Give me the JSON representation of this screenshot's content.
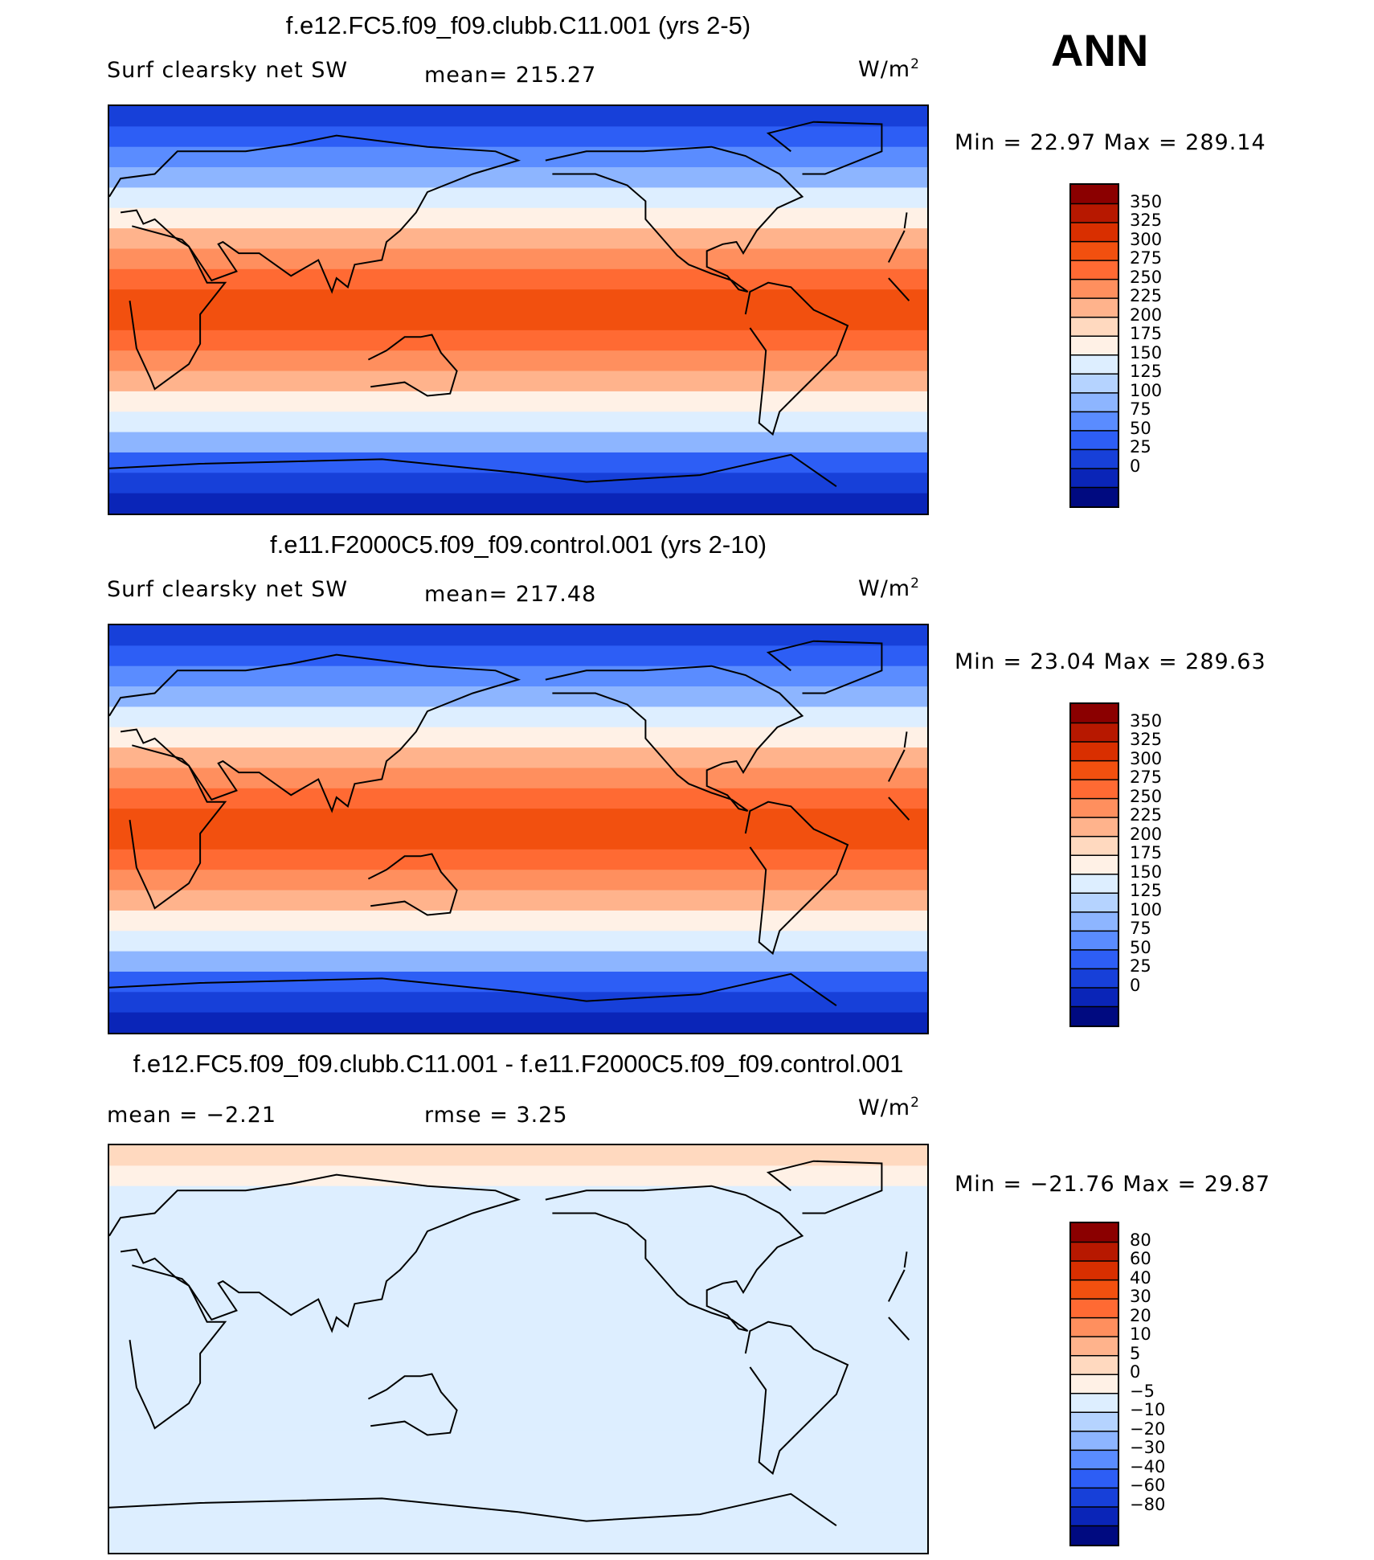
{
  "season": "ANN",
  "chart_data": [
    {
      "type": "heatmap",
      "title": "f.e12.FC5.f09_f09.clubb.C11.001 (yrs 2-5)",
      "variable": "Surf clearsky net SW",
      "mean_label": "mean= 215.27",
      "units": "W/m",
      "units_exp": "2",
      "stats_label": "Min =   22.97 Max =  289.14",
      "min": 22.97,
      "max": 289.14,
      "mean": 215.27,
      "colorbar_levels": [
        "350",
        "325",
        "300",
        "275",
        "250",
        "225",
        "200",
        "175",
        "150",
        "125",
        "100",
        "75",
        "50",
        "25",
        "0"
      ],
      "colorbar_colors": [
        "#8B0000",
        "#B71800",
        "#D92F00",
        "#F2500F",
        "#FF6A33",
        "#FF8F5E",
        "#FFB38C",
        "#FFD9BF",
        "#FFF1E6",
        "#DDEEFF",
        "#B5D3FF",
        "#8DB5FF",
        "#5A8CFF",
        "#2D5EF5",
        "#1740D9",
        "#0A25B8",
        "#000A80"
      ],
      "colormap": "ocean_values",
      "latitude_band_colors_north_to_south": [
        "#1740D9",
        "#2D5EF5",
        "#5A8CFF",
        "#8DB5FF",
        "#DDEEFF",
        "#FFF1E6",
        "#FFB38C",
        "#FF8F5E",
        "#FF6A33",
        "#F2500F",
        "#F2500F",
        "#FF6A33",
        "#FF8F5E",
        "#FFB38C",
        "#FFF1E6",
        "#DDEEFF",
        "#8DB5FF",
        "#2D5EF5",
        "#1740D9",
        "#0A25B8"
      ]
    },
    {
      "type": "heatmap",
      "title": "f.e11.F2000C5.f09_f09.control.001 (yrs 2-10)",
      "variable": "Surf clearsky net SW",
      "mean_label": "mean= 217.48",
      "units": "W/m",
      "units_exp": "2",
      "stats_label": "Min =   23.04 Max =  289.63",
      "min": 23.04,
      "max": 289.63,
      "mean": 217.48,
      "colorbar_levels": [
        "350",
        "325",
        "300",
        "275",
        "250",
        "225",
        "200",
        "175",
        "150",
        "125",
        "100",
        "75",
        "50",
        "25",
        "0"
      ],
      "colorbar_colors": [
        "#8B0000",
        "#B71800",
        "#D92F00",
        "#F2500F",
        "#FF6A33",
        "#FF8F5E",
        "#FFB38C",
        "#FFD9BF",
        "#FFF1E6",
        "#DDEEFF",
        "#B5D3FF",
        "#8DB5FF",
        "#5A8CFF",
        "#2D5EF5",
        "#1740D9",
        "#0A25B8",
        "#000A80"
      ],
      "colormap": "ocean_values",
      "latitude_band_colors_north_to_south": [
        "#1740D9",
        "#2D5EF5",
        "#5A8CFF",
        "#8DB5FF",
        "#DDEEFF",
        "#FFF1E6",
        "#FFB38C",
        "#FF8F5E",
        "#FF6A33",
        "#F2500F",
        "#F2500F",
        "#FF6A33",
        "#FF8F5E",
        "#FFB38C",
        "#FFF1E6",
        "#DDEEFF",
        "#8DB5FF",
        "#2D5EF5",
        "#1740D9",
        "#0A25B8"
      ]
    },
    {
      "type": "heatmap",
      "title": "f.e12.FC5.f09_f09.clubb.C11.001 - f.e11.F2000C5.f09_f09.control.001",
      "mean_label": "mean =   −2.21",
      "rmse_label": "rmse =    3.25",
      "units": "W/m",
      "units_exp": "2",
      "stats_label": "Min = −21.76 Max =   29.87",
      "min": -21.76,
      "max": 29.87,
      "mean": -2.21,
      "rmse": 3.25,
      "colorbar_levels": [
        "80",
        "60",
        "40",
        "30",
        "20",
        "10",
        "5",
        "0",
        "−5",
        "−10",
        "−20",
        "−30",
        "−40",
        "−60",
        "−80"
      ],
      "colorbar_colors": [
        "#8B0000",
        "#B71800",
        "#D92F00",
        "#F2500F",
        "#FF6A33",
        "#FF8F5E",
        "#FFB38C",
        "#FFD9BF",
        "#FFF1E6",
        "#DDEEFF",
        "#B5D3FF",
        "#8DB5FF",
        "#5A8CFF",
        "#2D5EF5",
        "#1740D9",
        "#0A25B8",
        "#000A80"
      ],
      "colormap": "difference",
      "latitude_band_colors_north_to_south": [
        "#FFD9BF",
        "#FFF1E6",
        "#DDEEFF",
        "#DDEEFF",
        "#DDEEFF",
        "#DDEEFF",
        "#DDEEFF",
        "#DDEEFF",
        "#DDEEFF",
        "#DDEEFF",
        "#DDEEFF",
        "#DDEEFF",
        "#DDEEFF",
        "#DDEEFF",
        "#DDEEFF",
        "#DDEEFF",
        "#DDEEFF",
        "#DDEEFF",
        "#DDEEFF",
        "#DDEEFF"
      ]
    }
  ]
}
